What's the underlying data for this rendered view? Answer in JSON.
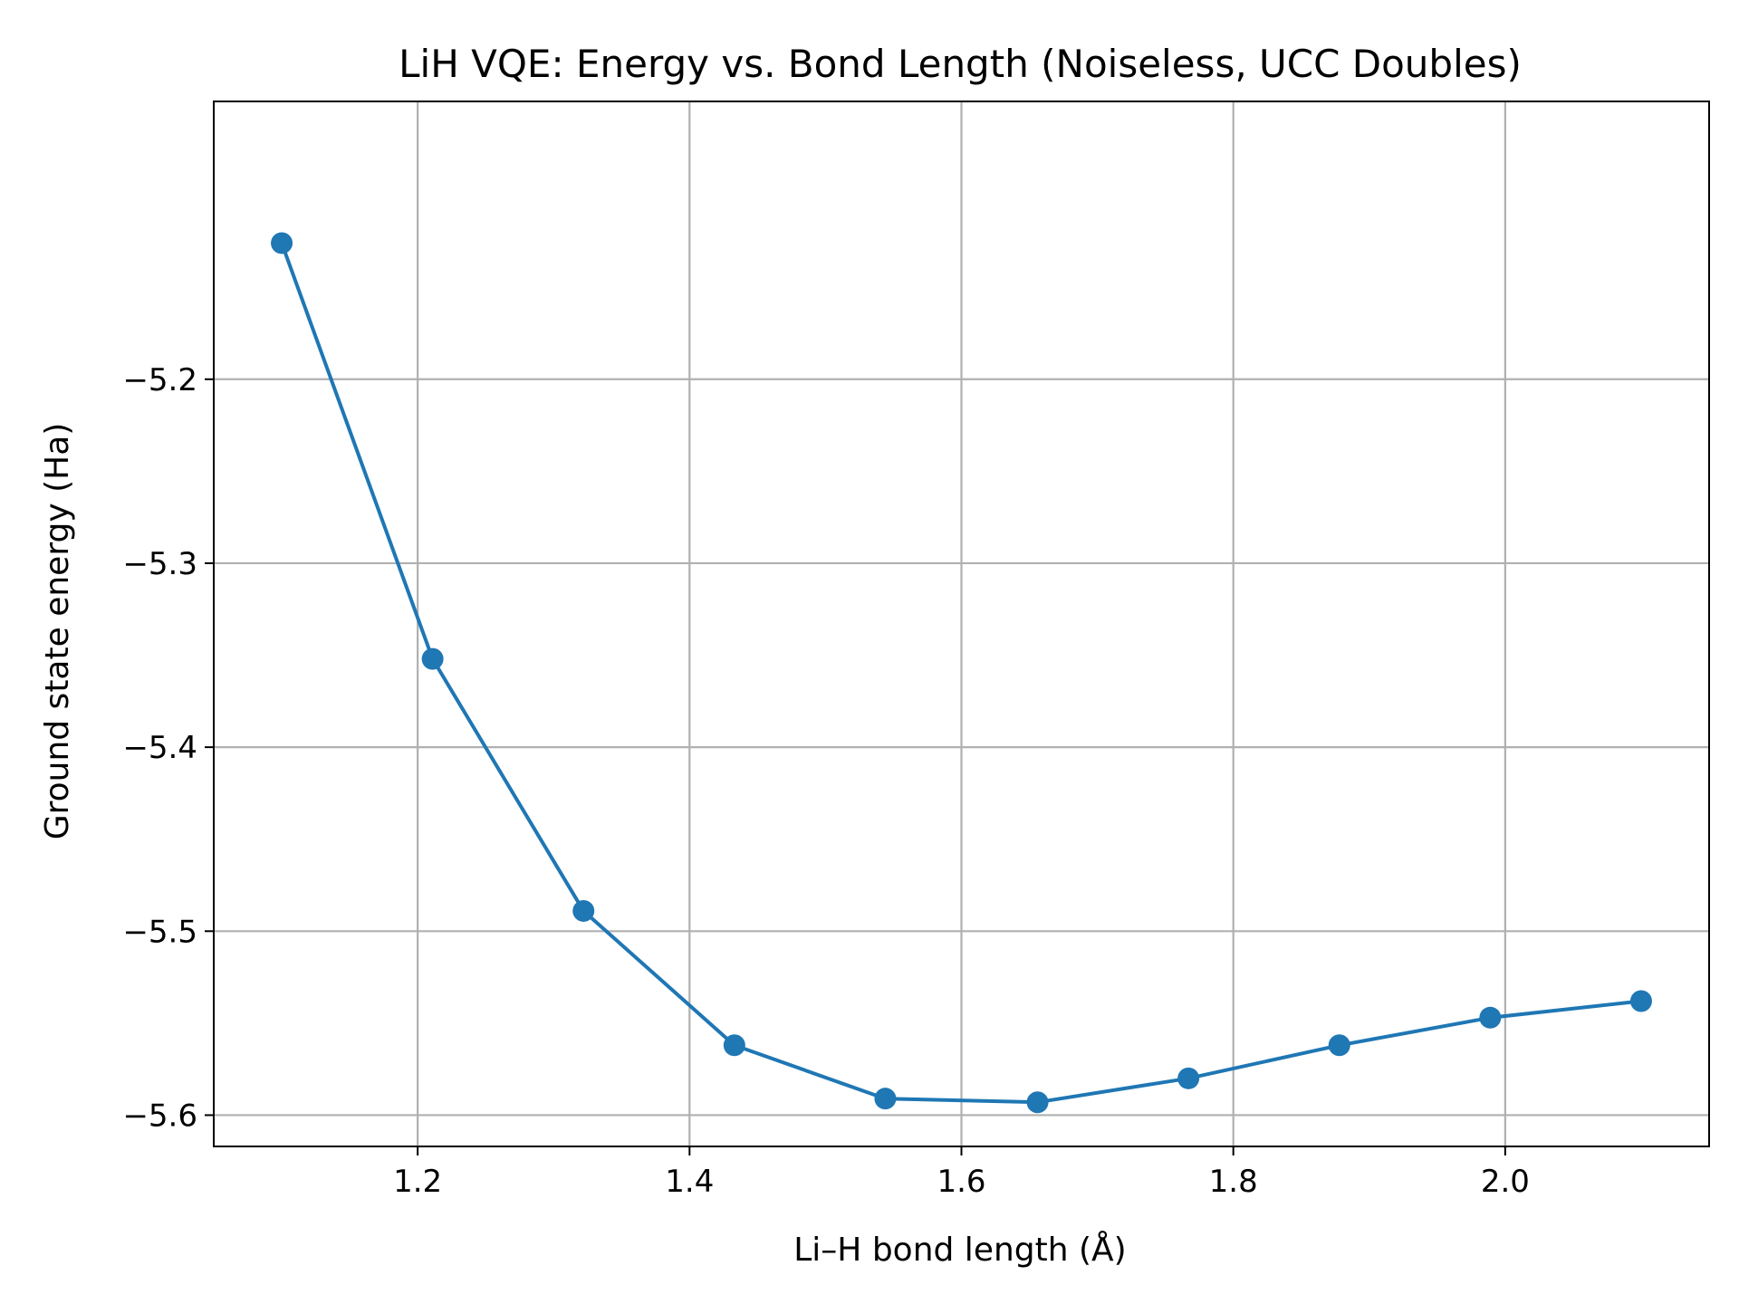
{
  "chart_data": {
    "type": "line",
    "title": "LiH VQE: Energy vs. Bond Length (Noiseless, UCC Doubles)",
    "xlabel": "Li–H bond length (Å)",
    "ylabel": "Ground state energy (Ha)",
    "xlim": [
      1.05,
      2.15
    ],
    "ylim": [
      -5.617,
      -5.049
    ],
    "x_ticks": [
      1.2,
      1.4,
      1.6,
      1.8,
      2.0
    ],
    "x_tick_labels": [
      "1.2",
      "1.4",
      "1.6",
      "1.8",
      "2.0"
    ],
    "y_ticks": [
      -5.2,
      -5.3,
      -5.4,
      -5.5,
      -5.6
    ],
    "y_tick_labels": [
      "−5.2",
      "−5.3",
      "−5.4",
      "−5.5",
      "−5.6"
    ],
    "grid": true,
    "series": [
      {
        "color": "#1f77b4",
        "marker": "circle",
        "x": [
          1.1,
          1.211,
          1.322,
          1.433,
          1.544,
          1.656,
          1.767,
          1.878,
          1.989,
          2.1
        ],
        "y": [
          -5.126,
          -5.352,
          -5.489,
          -5.562,
          -5.591,
          -5.593,
          -5.58,
          -5.562,
          -5.547,
          -5.538
        ]
      }
    ]
  }
}
